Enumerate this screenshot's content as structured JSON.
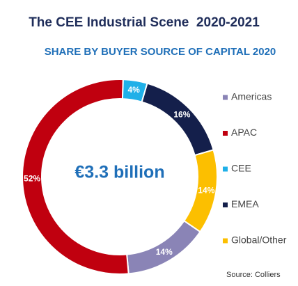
{
  "chart_data": {
    "type": "donut",
    "title": "The CEE Industrial Scene  2020-2021",
    "subtitle": "SHARE BY BUYER SOURCE OF CAPITAL 2020",
    "center_text": "€3.3 billion",
    "categories": [
      "Americas",
      "APAC",
      "CEE",
      "EMEA",
      "Global/Other"
    ],
    "values": [
      14,
      52,
      4,
      16,
      14
    ],
    "value_labels": [
      "14%",
      "52%",
      "4%",
      "16%",
      "14%"
    ],
    "colors": [
      "#8a84b6",
      "#c0000f",
      "#1fb0e8",
      "#141f4b",
      "#fcbf00"
    ],
    "legend": "right",
    "source": "Source: Colliers"
  }
}
